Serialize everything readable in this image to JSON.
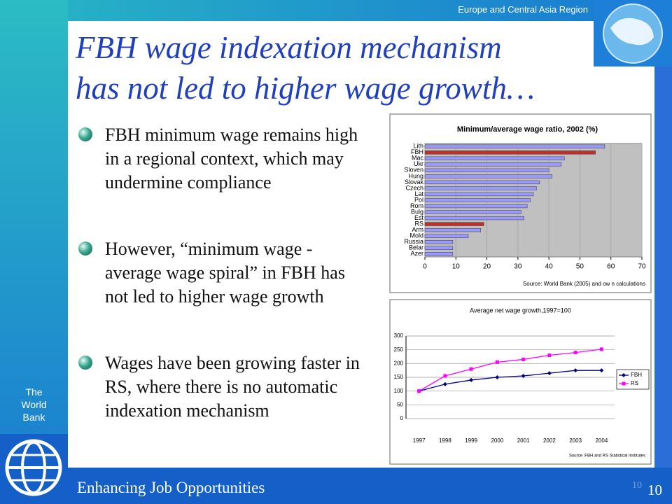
{
  "header": {
    "region": "Europe and Central Asia Region",
    "title_line1": "FBH wage indexation mechanism",
    "title_line2": "has not led to higher wage growth…"
  },
  "bullets": [
    "FBH minimum wage remains high in a regional context, which may undermine compliance",
    "However, “minimum wage - average wage spiral” in FBH has not led to higher wage growth",
    "Wages have been growing faster in RS, where there is no automatic indexation mechanism"
  ],
  "sidebar": {
    "org_line1": "The",
    "org_line2": "World",
    "org_line3": "Bank"
  },
  "footer": {
    "text": "Enhancing Job Opportunities",
    "slide_number": "10"
  },
  "chart_data": [
    {
      "type": "bar",
      "orientation": "horizontal",
      "title": "Minimum/average wage ratio, 2002 (%)",
      "categories": [
        "Lith",
        "FBH",
        "Mac",
        "Ukr",
        "Sloven",
        "Hung",
        "Slovak",
        "Czech",
        "Lat",
        "Pol",
        "Rom",
        "Bulg",
        "Est",
        "RS",
        "Arm",
        "Mold",
        "Russia",
        "Belar",
        "Azer"
      ],
      "values": [
        58,
        55,
        45,
        44,
        40,
        41,
        37,
        36,
        35,
        34,
        33,
        31,
        32,
        19,
        18,
        14,
        9,
        9,
        9
      ],
      "colors": [
        "#9999ff",
        "#c0302a",
        "#9999ff",
        "#9999ff",
        "#9999ff",
        "#9999ff",
        "#9999ff",
        "#9999ff",
        "#9999ff",
        "#9999ff",
        "#9999ff",
        "#9999ff",
        "#9999ff",
        "#c0302a",
        "#9999ff",
        "#9999ff",
        "#9999ff",
        "#9999ff",
        "#9999ff"
      ],
      "xlim": [
        0,
        70
      ],
      "xticks": [
        0,
        10,
        20,
        30,
        40,
        50,
        60,
        70
      ],
      "grid": true,
      "source": "Source: World Bank (2005) and ow n calculations"
    },
    {
      "type": "line",
      "title": "Average net wage growth,1997=100",
      "categories": [
        "1997",
        "1998",
        "1999",
        "2000",
        "2001",
        "2002",
        "2003",
        "2004"
      ],
      "series": [
        {
          "name": "FBH",
          "color": "#000080",
          "marker": "diamond",
          "values": [
            100,
            125,
            140,
            150,
            155,
            165,
            175,
            175
          ]
        },
        {
          "name": "RS",
          "color": "#ff00ff",
          "marker": "square",
          "values": [
            100,
            155,
            180,
            205,
            215,
            230,
            240,
            252
          ]
        }
      ],
      "ylim": [
        0,
        300
      ],
      "yticks": [
        0,
        50,
        100,
        150,
        200,
        250,
        300
      ],
      "grid": true,
      "legend": "right",
      "source": "Source :FBH and RS Statistical Institutes"
    }
  ]
}
